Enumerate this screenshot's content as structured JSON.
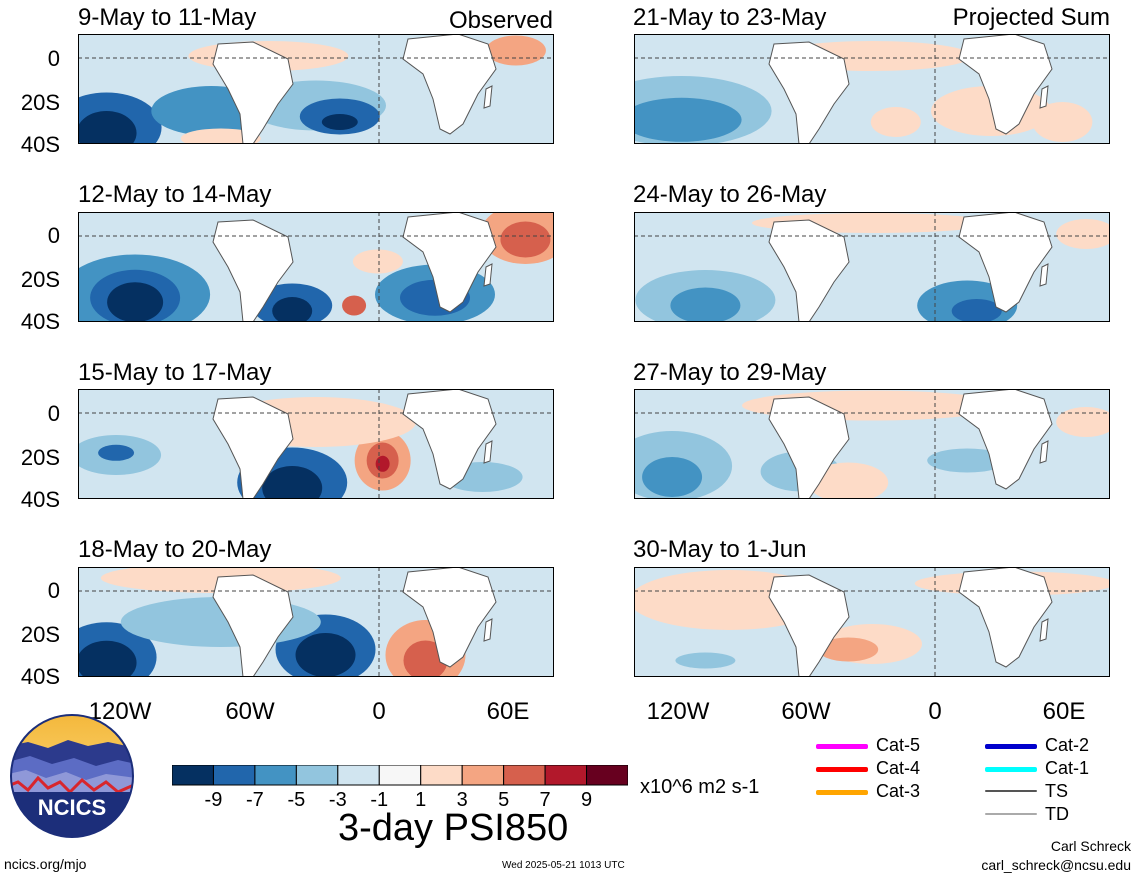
{
  "left_panels": [
    {
      "title": "9-May to 11-May",
      "tag": "Observed"
    },
    {
      "title": "12-May to 14-May",
      "tag": ""
    },
    {
      "title": "15-May to 17-May",
      "tag": ""
    },
    {
      "title": "18-May to 20-May",
      "tag": ""
    }
  ],
  "right_panels": [
    {
      "title": "21-May to 23-May",
      "tag": "Projected Sum"
    },
    {
      "title": "24-May to 26-May",
      "tag": ""
    },
    {
      "title": "27-May to 29-May",
      "tag": ""
    },
    {
      "title": "30-May to 1-Jun",
      "tag": ""
    }
  ],
  "lat_labels": [
    "0",
    "20S",
    "40S"
  ],
  "lon_labels": [
    "120W",
    "60W",
    "0",
    "60E"
  ],
  "storm_legend": [
    {
      "label": "Cat-5",
      "color": "#ff00ff"
    },
    {
      "label": "Cat-4",
      "color": "#ff0000"
    },
    {
      "label": "Cat-3",
      "color": "#ffa500"
    },
    {
      "label": "Cat-2",
      "color": "#0000cc"
    },
    {
      "label": "Cat-1",
      "color": "#00ffff"
    },
    {
      "label": "TS",
      "color": "#555555"
    },
    {
      "label": "TD",
      "color": "#aaaaaa"
    }
  ],
  "colorbar": {
    "labels": [
      "-9",
      "-7",
      "-5",
      "-3",
      "-1",
      "1",
      "3",
      "5",
      "7",
      "9"
    ],
    "colors": [
      "#053061",
      "#2166ac",
      "#4393c3",
      "#92c5de",
      "#d1e5f0",
      "#f7f7f7",
      "#fddbc7",
      "#f4a582",
      "#d6604d",
      "#b2182b",
      "#67001f"
    ]
  },
  "units": "x10^6 m2 s-1",
  "main_title": "3-day PSI850",
  "logo_text": "NCICS",
  "footer_left": "ncics.org/mjo",
  "footer_mid": "Wed 2025-05-21 1013 UTC",
  "author": "Carl Schreck",
  "email": "carl_schreck@ncsu.edu"
}
